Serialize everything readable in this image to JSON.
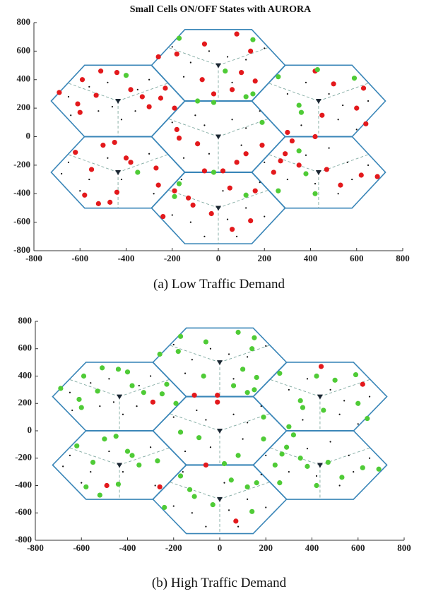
{
  "chart_data": [
    {
      "type": "scatter",
      "title": "Small Cells ON/OFF States with AURORA",
      "caption": "(a) Low Traffic Demand",
      "xlim": [
        -800,
        800
      ],
      "ylim": [
        -800,
        800
      ],
      "xticks": [
        -800,
        -600,
        -400,
        -200,
        0,
        200,
        400,
        600,
        800
      ],
      "yticks": [
        -800,
        -600,
        -400,
        -200,
        0,
        200,
        400,
        600,
        800
      ],
      "series": [
        {
          "marker": "dot",
          "color": "#111111",
          "x": [
            -650,
            -560,
            -480,
            -460,
            -420,
            -360,
            -300,
            -640,
            -520,
            -350,
            -200,
            -120,
            -40,
            40,
            120,
            200,
            -150,
            60,
            -100,
            -60,
            60,
            120,
            180,
            -200,
            100,
            -40,
            200,
            -150,
            300,
            380,
            480,
            540,
            650,
            520,
            360,
            600,
            -650,
            -560,
            -480,
            -600,
            -420,
            -300,
            -280,
            -680,
            380,
            480,
            560,
            650,
            520,
            420,
            300,
            580,
            -120,
            -60,
            40,
            120,
            200,
            -200,
            80,
            -160,
            20,
            180
          ],
          "y": [
            280,
            350,
            380,
            210,
            120,
            180,
            400,
            150,
            180,
            330,
            630,
            520,
            600,
            560,
            540,
            620,
            420,
            380,
            150,
            80,
            120,
            60,
            180,
            100,
            -60,
            -120,
            -180,
            -150,
            300,
            380,
            300,
            220,
            250,
            120,
            80,
            50,
            -180,
            -300,
            -150,
            -380,
            -300,
            -120,
            -400,
            -260,
            -130,
            -80,
            -180,
            -200,
            -400,
            -330,
            -300,
            -300,
            -600,
            -700,
            -580,
            -500,
            -560,
            -550,
            -700,
            -300,
            -380,
            -320
          ]
        },
        {
          "marker": "triangle",
          "color": "#1c2733",
          "x": [
            0,
            -435,
            435,
            0,
            0,
            -435,
            435
          ],
          "y": [
            0,
            250,
            250,
            500,
            -500,
            -250,
            -250
          ]
        },
        {
          "marker": "circle",
          "color": "#e3191c",
          "x": [
            -690,
            -590,
            -530,
            -610,
            -600,
            -510,
            -440,
            -380,
            -330,
            -300,
            -250,
            -230,
            -190,
            -260,
            -180,
            -60,
            80,
            140,
            -70,
            -20,
            60,
            160,
            100,
            -170,
            -620,
            -580,
            -520,
            -470,
            -440,
            -400,
            -550,
            -500,
            -450,
            -380,
            -270,
            -240,
            -90,
            -60,
            20,
            80,
            190,
            270,
            300,
            320,
            290,
            350,
            470,
            530,
            620,
            690,
            600,
            640,
            500,
            420,
            450,
            420,
            240,
            160,
            140,
            60,
            -110,
            -30,
            50,
            -130,
            630,
            -190,
            -260,
            120,
            -180
          ],
          "y": [
            310,
            400,
            290,
            230,
            170,
            460,
            450,
            330,
            280,
            210,
            270,
            340,
            200,
            560,
            580,
            650,
            720,
            600,
            400,
            300,
            330,
            390,
            450,
            -10,
            -110,
            -410,
            -470,
            -460,
            -390,
            -150,
            -230,
            -60,
            -40,
            -180,
            -220,
            -560,
            -50,
            -240,
            -240,
            -180,
            -60,
            -170,
            30,
            -30,
            -120,
            -200,
            -230,
            -340,
            -270,
            -280,
            200,
            90,
            370,
            460,
            150,
            0,
            -250,
            -380,
            -590,
            -650,
            -480,
            -540,
            -360,
            -430,
            340,
            -380,
            -340,
            -120,
            50
          ]
        },
        {
          "marker": "circle",
          "color": "#4fcb36",
          "x": [
            -170,
            150,
            -400,
            -20,
            120,
            -90,
            30,
            150,
            190,
            260,
            350,
            430,
            360,
            350,
            380,
            260,
            420,
            120,
            -20,
            -350,
            -170,
            -190,
            590
          ],
          "y": [
            690,
            680,
            430,
            240,
            280,
            250,
            460,
            300,
            100,
            420,
            220,
            470,
            170,
            -100,
            -260,
            -380,
            -400,
            -410,
            -250,
            -250,
            -330,
            -420,
            410
          ]
        }
      ]
    },
    {
      "type": "scatter",
      "caption": "(b) High Traffic Demand",
      "xlim": [
        -800,
        800
      ],
      "ylim": [
        -800,
        800
      ],
      "xticks": [
        -800,
        -600,
        -400,
        -200,
        0,
        200,
        400,
        600,
        800
      ],
      "yticks": [
        -800,
        -600,
        -400,
        -200,
        0,
        200,
        400,
        600,
        800
      ],
      "series": [
        {
          "marker": "dot",
          "color": "#111111",
          "x": [
            -650,
            -560,
            -480,
            -460,
            -420,
            -360,
            -300,
            -640,
            -520,
            -350,
            -200,
            -120,
            -40,
            40,
            120,
            200,
            -150,
            60,
            -100,
            -60,
            60,
            120,
            180,
            -200,
            100,
            -40,
            200,
            -150,
            300,
            380,
            480,
            540,
            650,
            520,
            360,
            600,
            -650,
            -560,
            -480,
            -600,
            -420,
            -300,
            -280,
            -680,
            380,
            480,
            560,
            650,
            520,
            420,
            300,
            580,
            -120,
            -60,
            40,
            120,
            200,
            -200,
            80,
            -160,
            20,
            180
          ],
          "y": [
            280,
            350,
            380,
            210,
            120,
            180,
            400,
            150,
            180,
            330,
            630,
            520,
            600,
            560,
            540,
            620,
            420,
            380,
            150,
            80,
            120,
            60,
            180,
            100,
            -60,
            -120,
            -180,
            -150,
            300,
            380,
            300,
            220,
            250,
            120,
            80,
            50,
            -180,
            -300,
            -150,
            -380,
            -300,
            -120,
            -400,
            -260,
            -130,
            -80,
            -180,
            -200,
            -400,
            -330,
            -300,
            -300,
            -600,
            -700,
            -580,
            -500,
            -560,
            -550,
            -700,
            -300,
            -380,
            -320
          ]
        },
        {
          "marker": "triangle",
          "color": "#1c2733",
          "x": [
            0,
            -435,
            435,
            0,
            0,
            -435,
            435
          ],
          "y": [
            0,
            250,
            250,
            500,
            -500,
            -250,
            -250
          ]
        },
        {
          "marker": "circle",
          "color": "#e3191c",
          "x": [
            -290,
            -110,
            -10,
            -10,
            -490,
            -260,
            -60,
            70,
            440,
            620
          ],
          "y": [
            210,
            260,
            260,
            210,
            -400,
            -410,
            -250,
            -660,
            470,
            340
          ]
        },
        {
          "marker": "circle",
          "color": "#4fcb36",
          "x": [
            -690,
            -590,
            -530,
            -610,
            -600,
            -510,
            -440,
            -380,
            -330,
            -250,
            -230,
            -190,
            -260,
            -180,
            -60,
            80,
            140,
            -70,
            60,
            160,
            100,
            -170,
            -620,
            -580,
            -520,
            -440,
            -400,
            -550,
            -500,
            -450,
            -380,
            -270,
            -240,
            -90,
            20,
            80,
            190,
            270,
            300,
            320,
            290,
            350,
            470,
            530,
            620,
            690,
            600,
            640,
            500,
            420,
            450,
            240,
            160,
            140,
            -110,
            -30,
            50,
            -130,
            -170,
            150,
            -400,
            120,
            150,
            190,
            260,
            350,
            360,
            380,
            260,
            420,
            120,
            -350,
            -170,
            590
          ],
          "y": [
            310,
            400,
            290,
            230,
            170,
            460,
            450,
            330,
            280,
            270,
            340,
            200,
            560,
            580,
            650,
            720,
            600,
            400,
            330,
            390,
            450,
            -10,
            -110,
            -410,
            -470,
            -390,
            -150,
            -230,
            -60,
            -40,
            -180,
            -220,
            -560,
            -50,
            -240,
            -180,
            -60,
            -170,
            30,
            -30,
            -120,
            -200,
            -230,
            -340,
            -270,
            -280,
            200,
            90,
            370,
            400,
            150,
            -250,
            -380,
            -590,
            -480,
            -540,
            -360,
            -430,
            690,
            680,
            430,
            280,
            300,
            100,
            420,
            220,
            170,
            -260,
            -380,
            -400,
            -410,
            -250,
            -330,
            410
          ]
        }
      ]
    }
  ]
}
